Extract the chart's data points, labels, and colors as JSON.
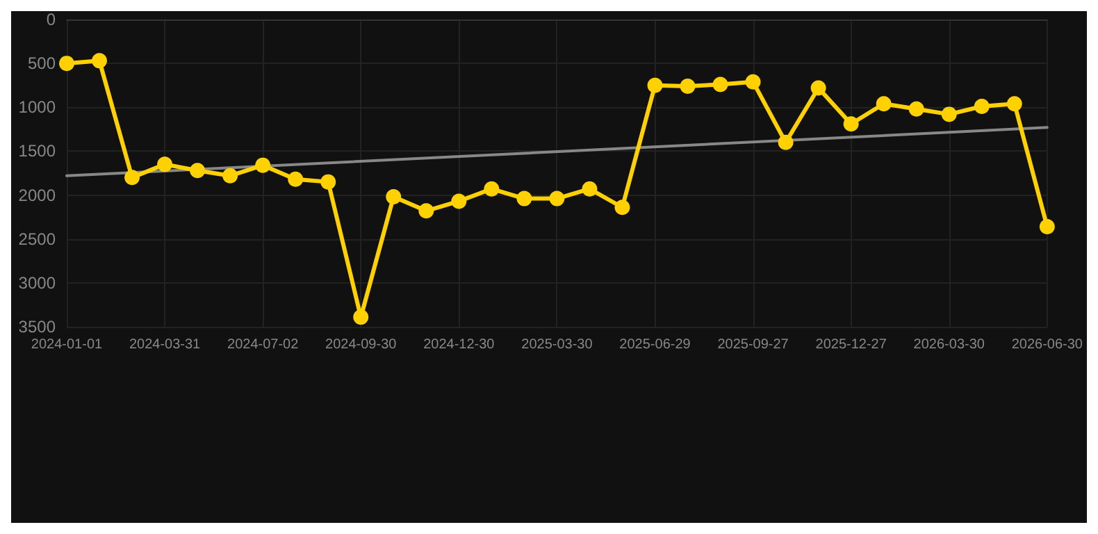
{
  "chart_data": {
    "type": "line",
    "categories": [
      "2024-01-01",
      null,
      null,
      "2024-03-31",
      null,
      null,
      "2024-07-02",
      null,
      null,
      "2024-09-30",
      null,
      null,
      "2024-12-30",
      null,
      null,
      "2025-03-30",
      null,
      null,
      "2025-06-29",
      null,
      null,
      "2025-09-27",
      null,
      null,
      "2025-12-27",
      null,
      null,
      "2026-03-30",
      null,
      null,
      "2026-06-30"
    ],
    "series": [
      {
        "color": "#ffd100",
        "marker": "circle",
        "values": [
          500,
          470,
          1800,
          1650,
          1720,
          1780,
          1660,
          1820,
          1850,
          3390,
          2020,
          2180,
          2070,
          1930,
          2040,
          2040,
          1930,
          2140,
          750,
          760,
          740,
          710,
          1400,
          780,
          1190,
          960,
          1020,
          1080,
          990,
          960,
          2360
        ]
      },
      {
        "type": "line",
        "color": "#888888",
        "marker": "none",
        "values": [
          1780,
          null,
          null,
          null,
          null,
          null,
          null,
          null,
          null,
          null,
          null,
          null,
          null,
          null,
          null,
          null,
          null,
          null,
          null,
          null,
          null,
          null,
          null,
          null,
          null,
          null,
          null,
          null,
          null,
          null,
          1230
        ]
      }
    ],
    "ylim": [
      3500,
      0
    ],
    "yticks": [
      0,
      500,
      1000,
      1500,
      2000,
      2500,
      3000,
      3500
    ],
    "grid": true,
    "line_style": "solid"
  }
}
